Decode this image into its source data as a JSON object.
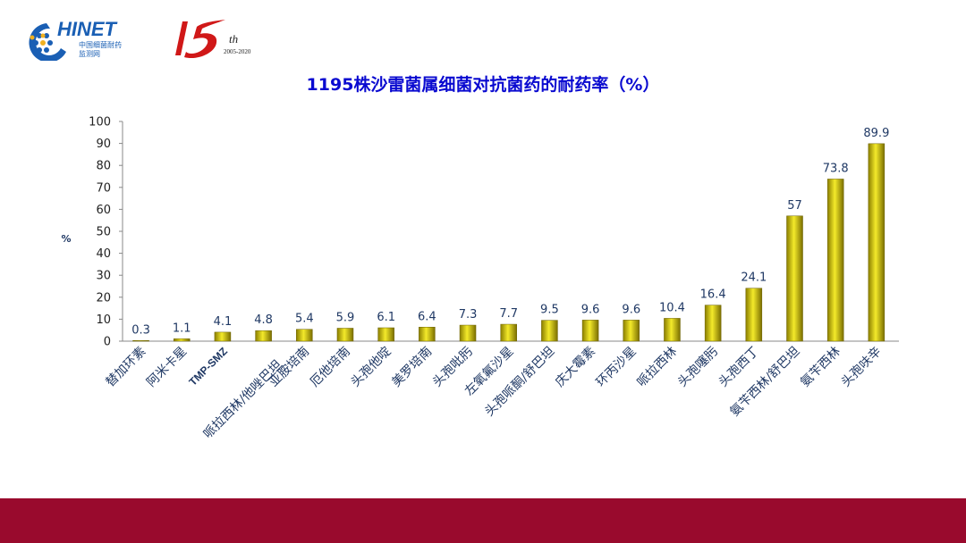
{
  "header": {
    "logo_text": "CHINET",
    "logo_subtitle_1": "中国细菌耐药",
    "logo_subtitle_2": "监测网",
    "anniversary_mark": "15th",
    "anniversary_years": "2005-2020"
  },
  "chart_data": {
    "type": "bar",
    "title": "1195株沙雷菌属细菌对抗菌药的耐药率（%）",
    "ylabel": "%",
    "xlabel": "",
    "ylim": [
      0,
      100
    ],
    "yticks": [
      0,
      10,
      20,
      30,
      40,
      50,
      60,
      70,
      80,
      90,
      100
    ],
    "grid": false,
    "categories": [
      "替加环素",
      "阿米卡星",
      "TMP-SMZ",
      "哌拉西林/他唑巴坦",
      "亚胺培南",
      "厄他培南",
      "头孢他啶",
      "美罗培南",
      "头孢吡肟",
      "左氧氟沙星",
      "头孢哌酮/舒巴坦",
      "庆大霉素",
      "环丙沙星",
      "哌拉西林",
      "头孢噻肟",
      "头孢西丁",
      "氨苄西林/舒巴坦",
      "氨苄西林",
      "头孢呋辛"
    ],
    "values": [
      0.3,
      1.1,
      4.1,
      4.8,
      5.4,
      5.9,
      6.1,
      6.4,
      7.3,
      7.7,
      9.5,
      9.6,
      9.6,
      10.4,
      16.4,
      24.1,
      57,
      73.8,
      89.9
    ],
    "data_labels": [
      "0.3",
      "1.1",
      "4.1",
      "4.8",
      "5.4",
      "5.9",
      "6.1",
      "6.4",
      "7.3",
      "7.7",
      "9.5",
      "9.6",
      "9.6",
      "10.4",
      "16.4",
      "24.1",
      "57",
      "73.8",
      "89.9"
    ],
    "bar_color": "#d4c400"
  }
}
